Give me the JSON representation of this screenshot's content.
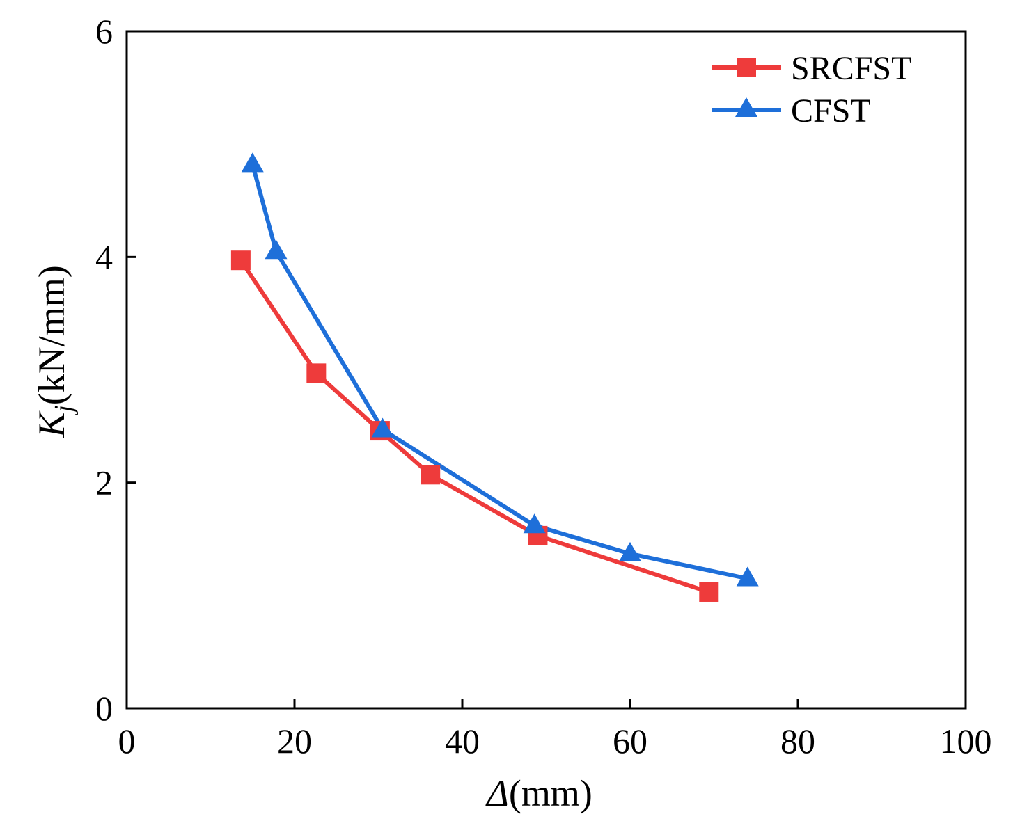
{
  "chart_data": {
    "type": "line",
    "title": "",
    "xlabel": {
      "symbol": "Δ",
      "unit": "(mm)"
    },
    "ylabel": {
      "symbol": "K",
      "subscript": "j",
      "unit": "(kN/mm)"
    },
    "xlim": [
      0,
      100
    ],
    "ylim": [
      0,
      6
    ],
    "xticks": [
      "0",
      "20",
      "40",
      "60",
      "80",
      "100"
    ],
    "yticks": [
      "0",
      "2",
      "4",
      "6"
    ],
    "grid": false,
    "legend_position": "top-right",
    "series": [
      {
        "name": "SRCFST",
        "color": "#ee3b3b",
        "marker": "square",
        "x": [
          13.6,
          22.6,
          30.2,
          36.2,
          49.0,
          69.4
        ],
        "y": [
          3.97,
          2.97,
          2.46,
          2.07,
          1.53,
          1.03
        ]
      },
      {
        "name": "CFST",
        "color": "#1e6fd9",
        "marker": "triangle",
        "x": [
          15.0,
          17.8,
          30.5,
          48.6,
          60.0,
          74.0
        ],
        "y": [
          4.82,
          4.05,
          2.47,
          1.62,
          1.37,
          1.15
        ]
      }
    ]
  }
}
